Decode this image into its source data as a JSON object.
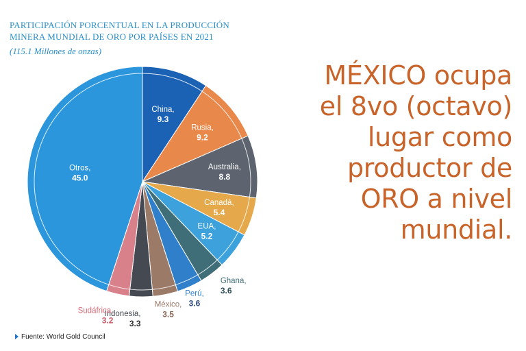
{
  "header": {
    "title_line1": "PARTICIPACIÓN PORCENTUAL EN LA PRODUCCIÓN",
    "title_line2": "MINERA MUNDIAL DE ORO POR PAÍSES EN 2021",
    "subtitle": "(115.1 Millones de onzas)"
  },
  "source": "Fuente: World Gold Council",
  "headline": {
    "lines": [
      "MÉXICO ocupa",
      "el 8vo (octavo)",
      "lugar como",
      "productor de",
      "ORO a nivel",
      "mundial."
    ]
  },
  "colors": {
    "title": "#2a8fc8",
    "headline": "#c8642a"
  },
  "chart_data": {
    "type": "pie",
    "title": "PARTICIPACIÓN PORCENTUAL EN LA PRODUCCIÓN MINERA MUNDIAL DE ORO POR PAÍSES EN 2021",
    "subtitle": "(115.1 Millones de onzas)",
    "slices": [
      {
        "label": "China",
        "value": "9.3",
        "num": 9.3,
        "color": "#1b62b4",
        "label_color": "#ffffff",
        "value_color": "#ffffff"
      },
      {
        "label": "Rusia",
        "value": "9.2",
        "num": 9.2,
        "color": "#e8884a",
        "label_color": "#ffffff",
        "value_color": "#ffffff"
      },
      {
        "label": "Australia",
        "value": "8.8",
        "num": 8.8,
        "color": "#5d6470",
        "label_color": "#ffffff",
        "value_color": "#ffffff"
      },
      {
        "label": "Canadá",
        "value": "5.4",
        "num": 5.4,
        "color": "#e5a94c",
        "label_color": "#ffffff",
        "value_color": "#ffffff"
      },
      {
        "label": "EUA",
        "value": "5.2",
        "num": 5.2,
        "color": "#3da2dc",
        "label_color": "#ffffff",
        "value_color": "#ffffff"
      },
      {
        "label": "Ghana",
        "value": "3.6",
        "num": 3.6,
        "color": "#3f6e78",
        "label_color": "#3f6e78",
        "value_color": "#2f4f57"
      },
      {
        "label": "Perú",
        "value": "3.6",
        "num": 3.6,
        "color": "#2f7fcb",
        "label_color": "#2f7fcb",
        "value_color": "#2f4f7a"
      },
      {
        "label": "México",
        "value": "3.5",
        "num": 3.5,
        "color": "#9b7a68",
        "label_color": "#9b7a68",
        "value_color": "#8a6a58"
      },
      {
        "label": "Indonesia",
        "value": "3.3",
        "num": 3.3,
        "color": "#454a52",
        "label_color": "#454a52",
        "value_color": "#333"
      },
      {
        "label": "Sudáfrica",
        "value": "3.2",
        "num": 3.2,
        "color": "#d9818b",
        "label_color": "#d06a76",
        "value_color": "#c85a66"
      },
      {
        "label": "Otros",
        "value": "45.0",
        "num": 45.0,
        "color": "#2c96dc",
        "label_color": "#ffffff",
        "value_color": "#ffffff"
      }
    ]
  }
}
